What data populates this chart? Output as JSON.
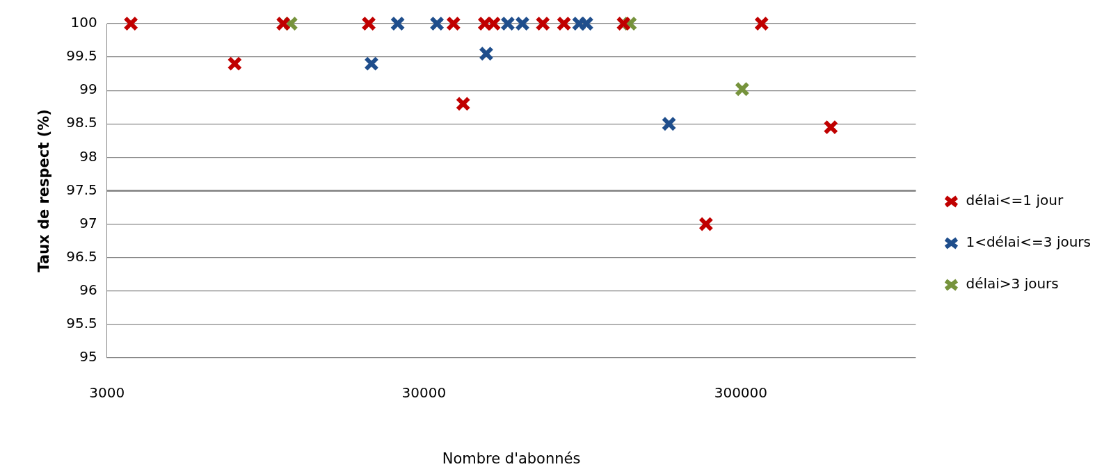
{
  "chart_data": {
    "type": "scatter",
    "xlabel": "Nombre d'abonnés",
    "ylabel": "Taux de respect (%)",
    "log": "x",
    "xlim": [
      3000,
      1070000
    ],
    "xticks": [
      3000,
      30000,
      300000
    ],
    "ylim": [
      95,
      100
    ],
    "yticks": [
      95,
      95.5,
      96,
      96.5,
      97,
      97.5,
      98,
      98.5,
      99,
      99.5,
      100
    ],
    "grid": "y",
    "legend": "right",
    "marker": "cross",
    "ref_lines": [
      {
        "axis": "y",
        "value": 97.5,
        "color": "#808080"
      }
    ],
    "series": [
      {
        "name": "délai<=1 jour",
        "color": "#c00000",
        "x": [
          3570,
          7590,
          10800,
          20100,
          37200,
          39900,
          46700,
          49800,
          71200,
          83000,
          128000,
          233000,
          349000,
          577000
        ],
        "values": [
          100,
          99.4,
          100,
          100,
          100,
          98.8,
          100,
          100,
          100,
          100,
          100,
          97,
          100,
          98.45
        ]
      },
      {
        "name": "1<délai<=3 jours",
        "color": "#1f4e8c",
        "x": [
          20500,
          24800,
          33000,
          47200,
          55200,
          61400,
          92700,
          97700,
          178000
        ],
        "values": [
          99.4,
          100,
          100,
          99.55,
          100,
          100,
          100,
          100,
          98.5
        ]
      },
      {
        "name": "délai>3 jours",
        "color": "#76933c",
        "x": [
          11400,
          134000,
          303000
        ],
        "values": [
          100,
          100,
          99.02
        ]
      }
    ]
  }
}
